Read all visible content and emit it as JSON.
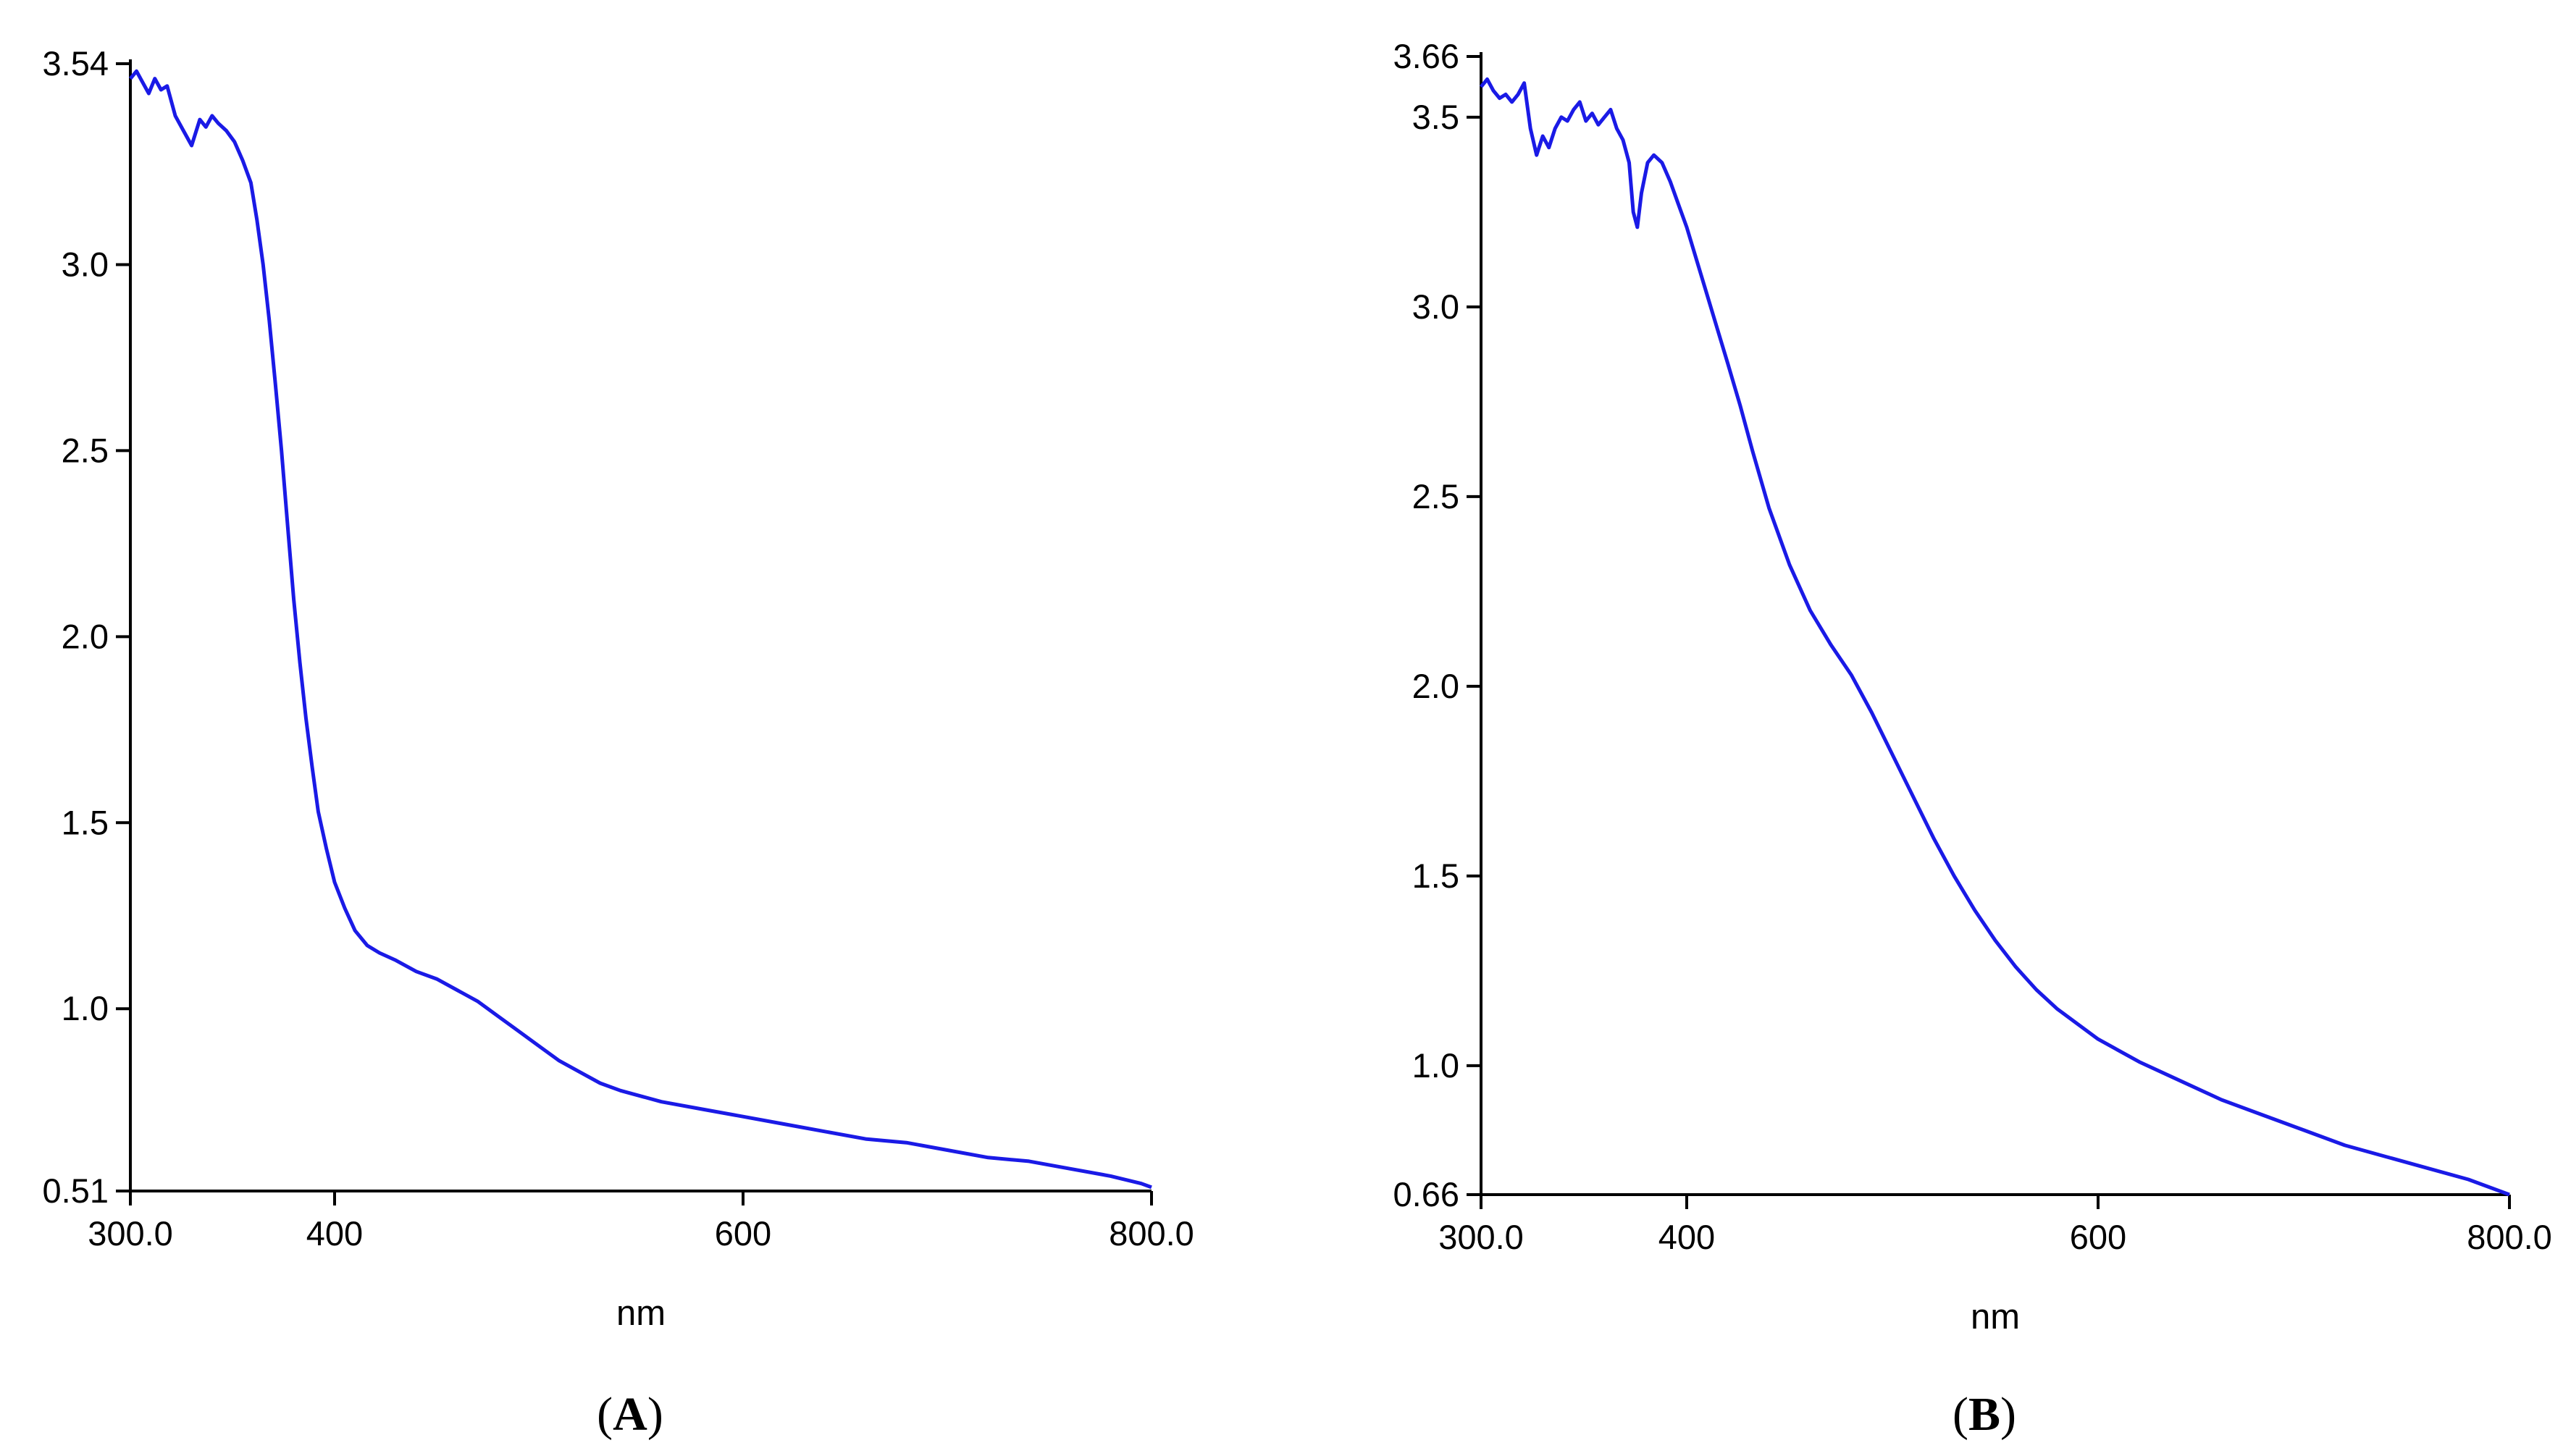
{
  "chart_data": [
    {
      "type": "line",
      "panel_label": "A",
      "xlabel": "nm",
      "ylabel": "",
      "xlim": [
        300,
        800
      ],
      "ylim": [
        0.51,
        3.54
      ],
      "x_ticks": [
        {
          "value": 300,
          "label": "300.0"
        },
        {
          "value": 400,
          "label": "400"
        },
        {
          "value": 600,
          "label": "600"
        },
        {
          "value": 800,
          "label": "800.0"
        }
      ],
      "y_ticks": [
        {
          "value": 0.51,
          "label": "0.51"
        },
        {
          "value": 1.0,
          "label": "1.0"
        },
        {
          "value": 1.5,
          "label": "1.5"
        },
        {
          "value": 2.0,
          "label": "2.0"
        },
        {
          "value": 2.5,
          "label": "2.5"
        },
        {
          "value": 3.0,
          "label": "3.0"
        },
        {
          "value": 3.54,
          "label": "3.54"
        }
      ],
      "series": [
        {
          "color": "#1a1ae6",
          "points": [
            [
              300,
              3.5
            ],
            [
              303,
              3.52
            ],
            [
              306,
              3.49
            ],
            [
              309,
              3.46
            ],
            [
              312,
              3.5
            ],
            [
              315,
              3.47
            ],
            [
              318,
              3.48
            ],
            [
              322,
              3.4
            ],
            [
              326,
              3.36
            ],
            [
              330,
              3.32
            ],
            [
              334,
              3.39
            ],
            [
              337,
              3.37
            ],
            [
              340,
              3.4
            ],
            [
              343,
              3.38
            ],
            [
              347,
              3.36
            ],
            [
              351,
              3.33
            ],
            [
              355,
              3.28
            ],
            [
              359,
              3.22
            ],
            [
              362,
              3.12
            ],
            [
              365,
              3.0
            ],
            [
              368,
              2.85
            ],
            [
              371,
              2.68
            ],
            [
              374,
              2.5
            ],
            [
              377,
              2.3
            ],
            [
              380,
              2.1
            ],
            [
              383,
              1.93
            ],
            [
              386,
              1.78
            ],
            [
              389,
              1.65
            ],
            [
              392,
              1.53
            ],
            [
              396,
              1.43
            ],
            [
              400,
              1.34
            ],
            [
              405,
              1.27
            ],
            [
              410,
              1.21
            ],
            [
              416,
              1.17
            ],
            [
              422,
              1.15
            ],
            [
              430,
              1.13
            ],
            [
              440,
              1.1
            ],
            [
              450,
              1.08
            ],
            [
              460,
              1.05
            ],
            [
              470,
              1.02
            ],
            [
              480,
              0.98
            ],
            [
              490,
              0.94
            ],
            [
              500,
              0.9
            ],
            [
              510,
              0.86
            ],
            [
              520,
              0.83
            ],
            [
              530,
              0.8
            ],
            [
              540,
              0.78
            ],
            [
              560,
              0.75
            ],
            [
              580,
              0.73
            ],
            [
              600,
              0.71
            ],
            [
              620,
              0.69
            ],
            [
              640,
              0.67
            ],
            [
              660,
              0.65
            ],
            [
              680,
              0.64
            ],
            [
              700,
              0.62
            ],
            [
              720,
              0.6
            ],
            [
              740,
              0.59
            ],
            [
              760,
              0.57
            ],
            [
              780,
              0.55
            ],
            [
              795,
              0.53
            ],
            [
              800,
              0.52
            ]
          ]
        }
      ]
    },
    {
      "type": "line",
      "panel_label": "B",
      "xlabel": "nm",
      "ylabel": "",
      "xlim": [
        300,
        800
      ],
      "ylim": [
        0.66,
        3.66
      ],
      "x_ticks": [
        {
          "value": 300,
          "label": "300.0"
        },
        {
          "value": 400,
          "label": "400"
        },
        {
          "value": 600,
          "label": "600"
        },
        {
          "value": 800,
          "label": "800.0"
        }
      ],
      "y_ticks": [
        {
          "value": 0.66,
          "label": "0.66"
        },
        {
          "value": 1.0,
          "label": "1.0"
        },
        {
          "value": 1.5,
          "label": "1.5"
        },
        {
          "value": 2.0,
          "label": "2.0"
        },
        {
          "value": 2.5,
          "label": "2.5"
        },
        {
          "value": 3.0,
          "label": "3.0"
        },
        {
          "value": 3.5,
          "label": "3.5"
        },
        {
          "value": 3.66,
          "label": "3.66"
        }
      ],
      "series": [
        {
          "color": "#1a1ae6",
          "points": [
            [
              300,
              3.58
            ],
            [
              303,
              3.6
            ],
            [
              306,
              3.57
            ],
            [
              309,
              3.55
            ],
            [
              312,
              3.56
            ],
            [
              315,
              3.54
            ],
            [
              318,
              3.56
            ],
            [
              321,
              3.59
            ],
            [
              324,
              3.47
            ],
            [
              327,
              3.4
            ],
            [
              330,
              3.45
            ],
            [
              333,
              3.42
            ],
            [
              336,
              3.47
            ],
            [
              339,
              3.5
            ],
            [
              342,
              3.49
            ],
            [
              345,
              3.52
            ],
            [
              348,
              3.54
            ],
            [
              351,
              3.49
            ],
            [
              354,
              3.51
            ],
            [
              357,
              3.48
            ],
            [
              360,
              3.5
            ],
            [
              363,
              3.52
            ],
            [
              366,
              3.47
            ],
            [
              369,
              3.44
            ],
            [
              372,
              3.38
            ],
            [
              374,
              3.25
            ],
            [
              376,
              3.21
            ],
            [
              378,
              3.3
            ],
            [
              381,
              3.38
            ],
            [
              384,
              3.4
            ],
            [
              388,
              3.38
            ],
            [
              392,
              3.33
            ],
            [
              396,
              3.27
            ],
            [
              400,
              3.21
            ],
            [
              405,
              3.12
            ],
            [
              410,
              3.03
            ],
            [
              415,
              2.94
            ],
            [
              420,
              2.85
            ],
            [
              426,
              2.74
            ],
            [
              432,
              2.62
            ],
            [
              440,
              2.47
            ],
            [
              450,
              2.32
            ],
            [
              460,
              2.2
            ],
            [
              470,
              2.11
            ],
            [
              480,
              2.03
            ],
            [
              490,
              1.93
            ],
            [
              500,
              1.82
            ],
            [
              510,
              1.71
            ],
            [
              520,
              1.6
            ],
            [
              530,
              1.5
            ],
            [
              540,
              1.41
            ],
            [
              550,
              1.33
            ],
            [
              560,
              1.26
            ],
            [
              570,
              1.2
            ],
            [
              580,
              1.15
            ],
            [
              590,
              1.11
            ],
            [
              600,
              1.07
            ],
            [
              620,
              1.01
            ],
            [
              640,
              0.96
            ],
            [
              660,
              0.91
            ],
            [
              680,
              0.87
            ],
            [
              700,
              0.83
            ],
            [
              720,
              0.79
            ],
            [
              740,
              0.76
            ],
            [
              760,
              0.73
            ],
            [
              780,
              0.7
            ],
            [
              800,
              0.66
            ]
          ]
        }
      ]
    }
  ]
}
